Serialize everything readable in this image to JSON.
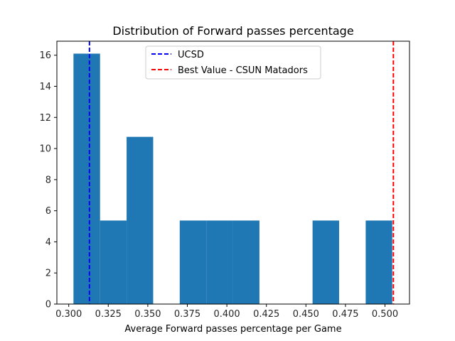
{
  "chart_data": {
    "type": "bar",
    "title": "Distribution of Forward passes percentage",
    "xlabel": "Average Forward passes percentage per Game",
    "ylabel": "",
    "xlim": [
      0.2925,
      0.5155
    ],
    "ylim": [
      0,
      16.9
    ],
    "xticks": [
      "0.300",
      "0.325",
      "0.350",
      "0.375",
      "0.400",
      "0.425",
      "0.450",
      "0.475",
      "0.500"
    ],
    "yticks": [
      "0",
      "2",
      "4",
      "6",
      "8",
      "10",
      "12",
      "14",
      "16"
    ],
    "bin_edges": [
      0.303,
      0.3198,
      0.3366,
      0.3534,
      0.3702,
      0.387,
      0.4038,
      0.4206,
      0.4374,
      0.4542,
      0.471,
      0.4878,
      0.5046
    ],
    "values": [
      16.1,
      5.37,
      10.75,
      0,
      5.37,
      5.37,
      5.37,
      0,
      0,
      5.37,
      0,
      5.37
    ],
    "bar_color": "#1f77b4",
    "reference_lines": [
      {
        "name": "UCSD",
        "x": 0.3131,
        "color": "#0000ff"
      },
      {
        "name": "Best Value - CSUN Matadors",
        "x": 0.5053,
        "color": "#ff0000"
      }
    ],
    "legend_position": "top-center",
    "grid": false
  }
}
